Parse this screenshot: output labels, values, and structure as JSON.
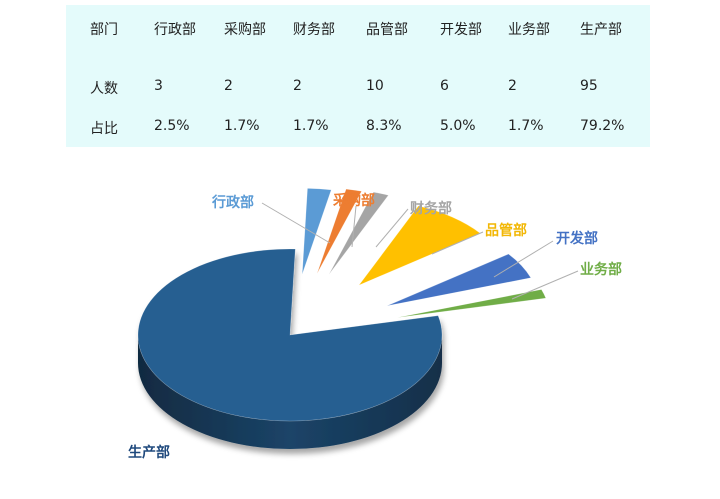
{
  "table": {
    "header_label": "部门",
    "count_label": "人数",
    "share_label": "占比",
    "departments": [
      "行政部",
      "采购部",
      "财务部",
      "品管部",
      "开发部",
      "业务部",
      "生产部"
    ],
    "counts": [
      "3",
      "2",
      "2",
      "10",
      "6",
      "2",
      "95"
    ],
    "shares": [
      "2.5%",
      "1.7%",
      "1.7%",
      "8.3%",
      "5.0%",
      "1.7%",
      "79.2%"
    ]
  },
  "chart_data": {
    "type": "pie",
    "style": "3d-exploded",
    "categories": [
      "行政部",
      "采购部",
      "财务部",
      "品管部",
      "开发部",
      "业务部",
      "生产部"
    ],
    "values": [
      3,
      2,
      2,
      10,
      6,
      2,
      95
    ],
    "percentages": [
      2.5,
      1.7,
      1.7,
      8.3,
      5.0,
      1.7,
      79.2
    ],
    "colors": [
      "#5b9bd5",
      "#ed7d31",
      "#a5a5a5",
      "#ffc000",
      "#4472c4",
      "#70ad47",
      "#255e91"
    ],
    "label_colors": [
      "#5b9bd5",
      "#ed7d31",
      "#a5a5a5",
      "#f2b705",
      "#4472c4",
      "#70ad47",
      "#1f497d"
    ],
    "legend": "none",
    "data_labels": "category-name-with-leader-lines"
  }
}
